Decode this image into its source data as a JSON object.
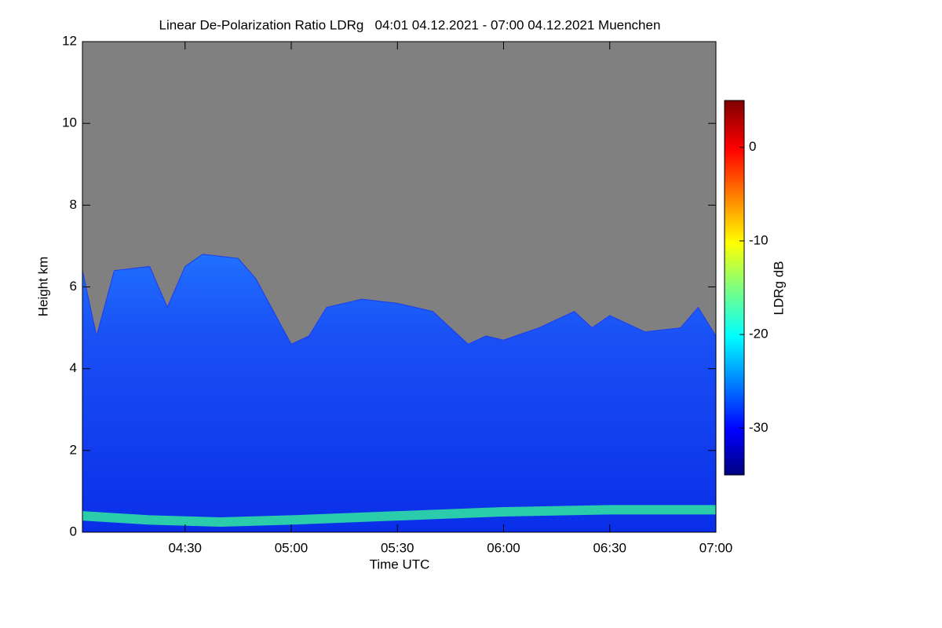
{
  "chart_data": {
    "type": "time-height",
    "title": "Linear De-Polarization Ratio LDRg   04:01 04.12.2021 - 07:00 04.12.2021 Muenchen",
    "x_label": "Time UTC",
    "y_label": "Height km",
    "colorbar_label": "LDRg dB",
    "xlim": [
      241,
      420
    ],
    "xticks": [
      {
        "value": 270,
        "label": "04:30"
      },
      {
        "value": 300,
        "label": "05:00"
      },
      {
        "value": 330,
        "label": "05:30"
      },
      {
        "value": 360,
        "label": "06:00"
      },
      {
        "value": 390,
        "label": "06:30"
      },
      {
        "value": 420,
        "label": "07:00"
      }
    ],
    "ylim": [
      0,
      12
    ],
    "yticks": [
      0,
      2,
      4,
      6,
      8,
      10,
      12
    ],
    "clim": [
      -35,
      5
    ],
    "cticks": [
      0,
      -10,
      -20,
      -30
    ],
    "cloud_top": {
      "color": "#1a3cf0",
      "x": [
        241,
        245,
        250,
        260,
        265,
        270,
        275,
        285,
        290,
        295,
        300,
        305,
        310,
        320,
        330,
        340,
        345,
        350,
        355,
        360,
        370,
        380,
        385,
        390,
        400,
        410,
        415,
        420
      ],
      "values": [
        6.4,
        4.8,
        6.4,
        6.5,
        5.5,
        6.5,
        6.8,
        6.7,
        6.2,
        5.4,
        4.6,
        4.8,
        5.5,
        5.7,
        5.6,
        5.4,
        5.0,
        4.6,
        4.8,
        4.7,
        5.0,
        5.4,
        5.0,
        5.3,
        4.9,
        5.0,
        5.5,
        4.8
      ]
    },
    "surface_layer": {
      "color": "#30e8a0",
      "x": [
        241,
        260,
        280,
        300,
        330,
        360,
        390,
        420
      ],
      "values": [
        0.4,
        0.3,
        0.25,
        0.3,
        0.4,
        0.5,
        0.55,
        0.55
      ]
    }
  }
}
